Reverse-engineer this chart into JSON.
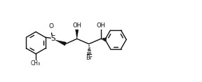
{
  "bg": "#ffffff",
  "fc": "#111111",
  "figsize": [
    2.88,
    1.17
  ],
  "dpi": 100,
  "xlim": [
    -0.5,
    10.5
  ],
  "ylim": [
    0.5,
    4.5
  ]
}
